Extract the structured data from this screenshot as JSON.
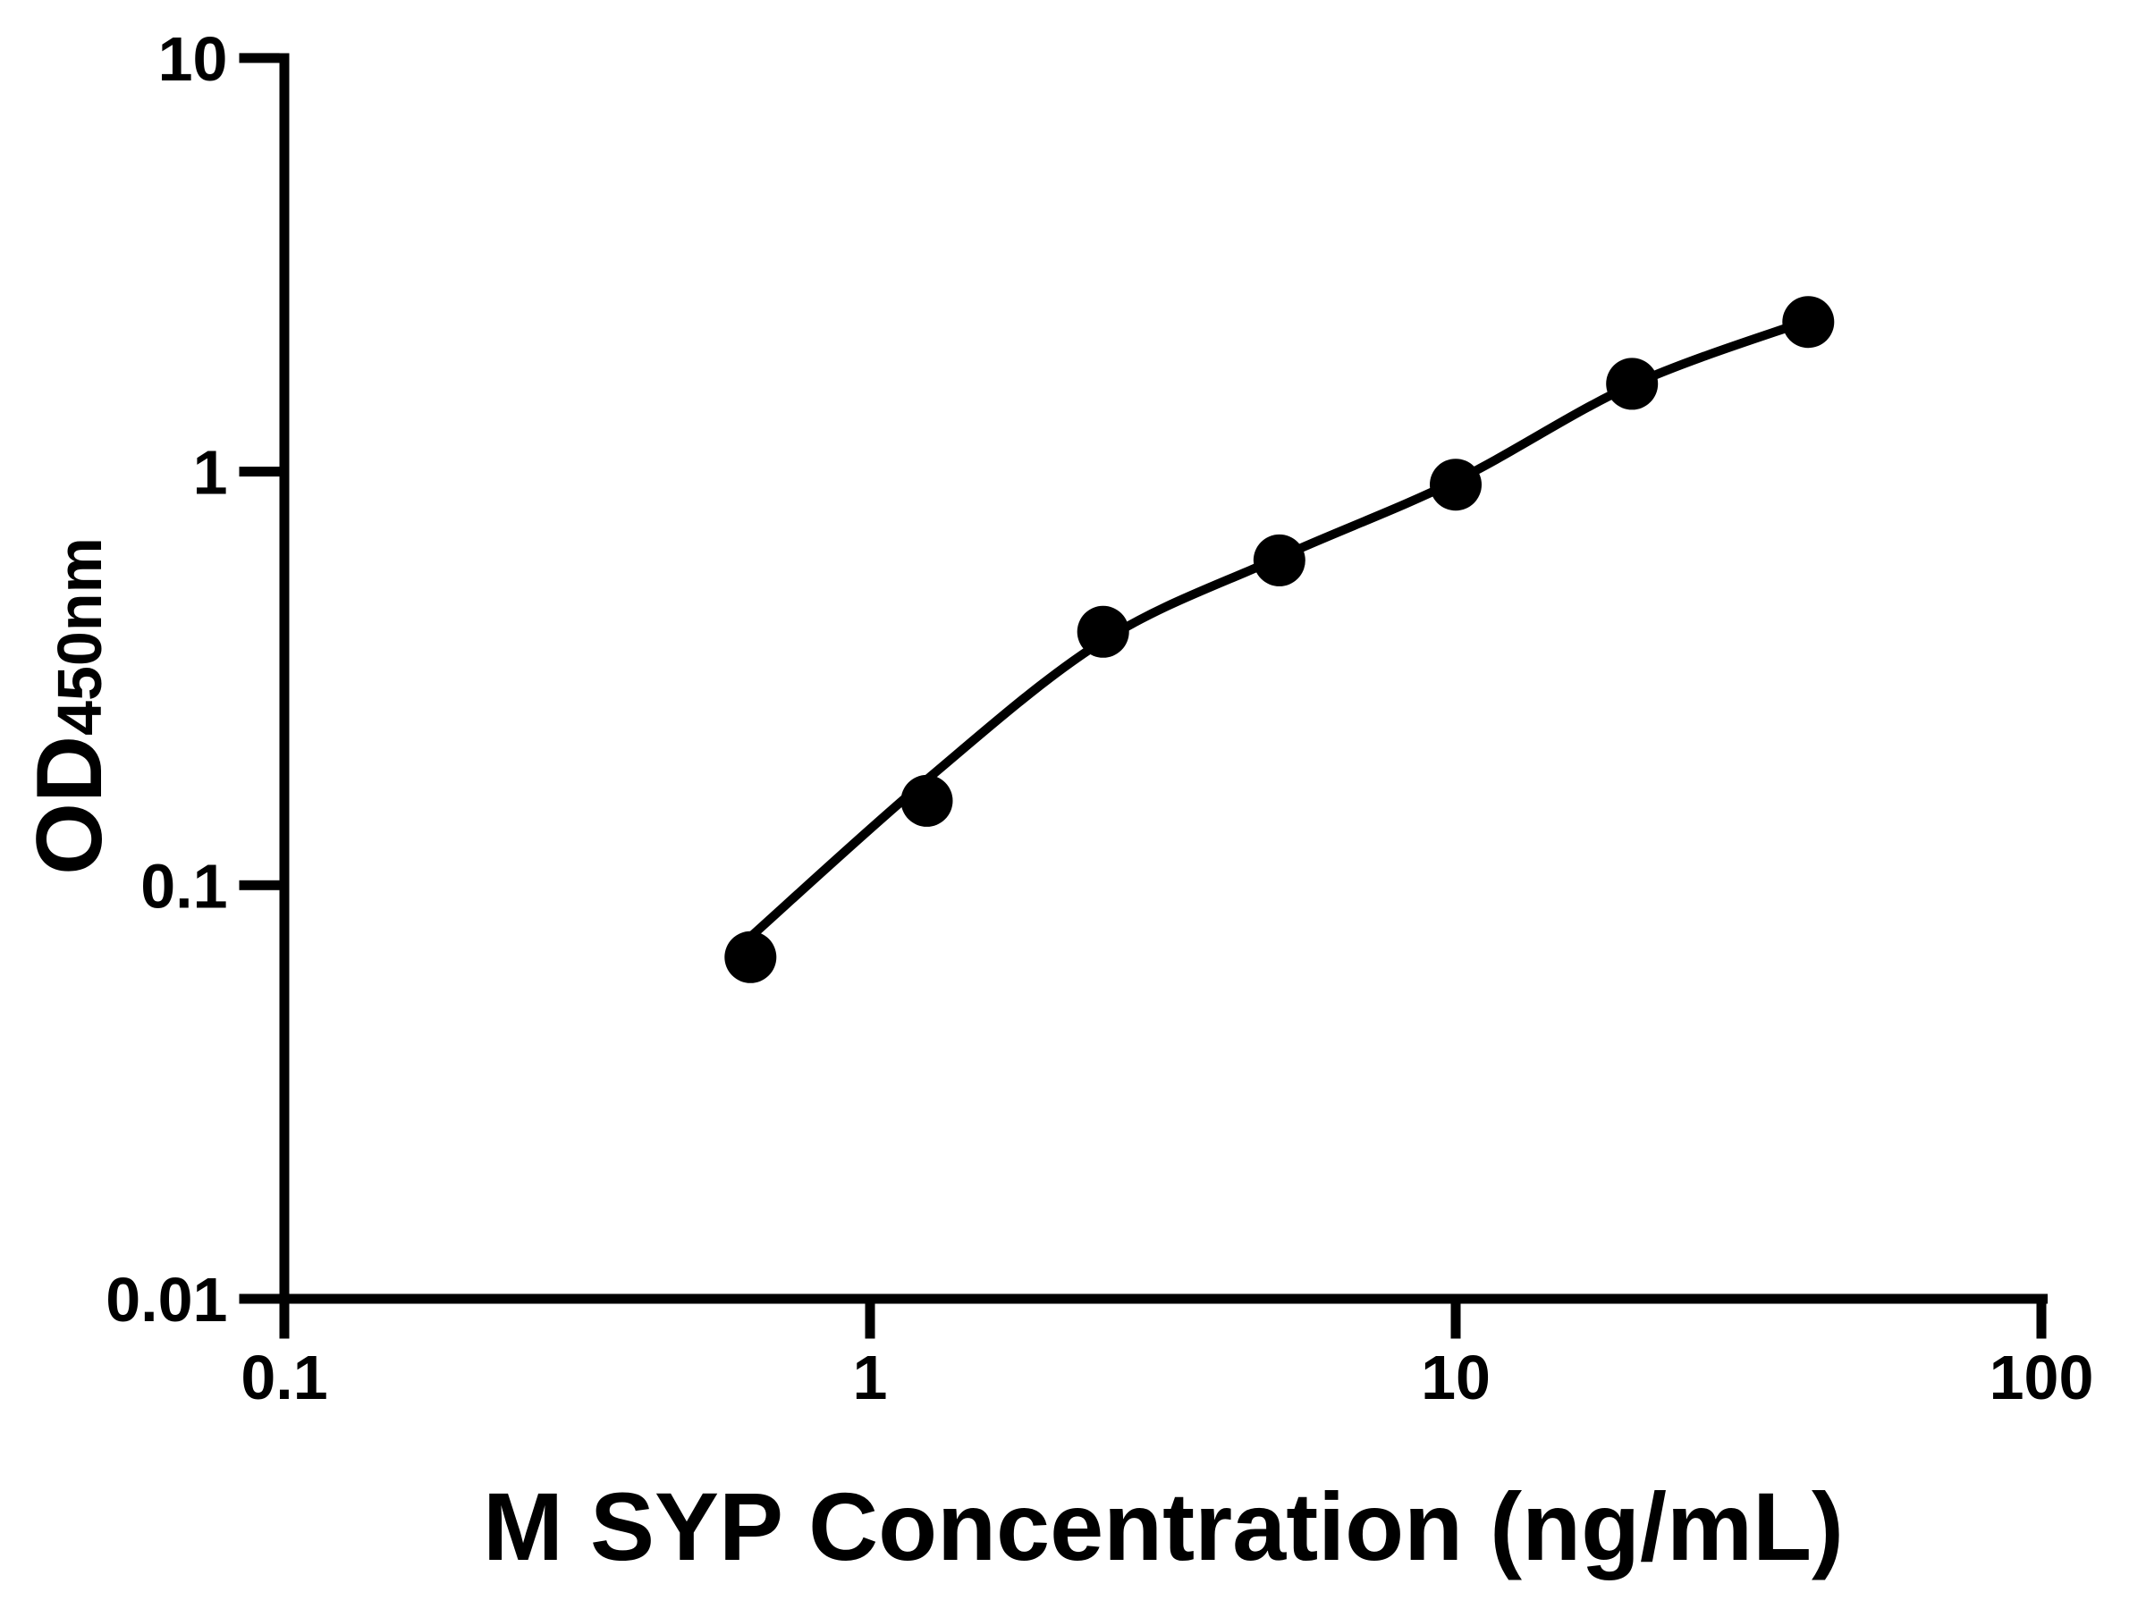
{
  "chart_data": {
    "type": "scatter",
    "title": "",
    "background_color": "#ffffff",
    "foreground_color": "#000000",
    "grid": false,
    "legend": false,
    "x_axis": {
      "label": "M SYP Concentration (ng/mL)",
      "scale": "log10",
      "range": [
        0.1,
        100
      ],
      "tick_values": [
        0.1,
        1,
        10,
        100
      ],
      "tick_labels": [
        "0.1",
        "1",
        "10",
        "100"
      ]
    },
    "y_axis": {
      "label": "OD450nm",
      "label_main": "OD",
      "label_subscript": "450nm",
      "scale": "log10",
      "range": [
        0.01,
        10
      ],
      "tick_values": [
        10,
        1,
        0.1,
        0.01
      ],
      "tick_labels": [
        "10",
        "1",
        "0.1",
        "0.01"
      ]
    },
    "series": [
      {
        "name": "M SYP standard points",
        "marker": "filled-circle",
        "color": "#000000",
        "points": [
          {
            "x": 0.625,
            "y": 0.067
          },
          {
            "x": 1.25,
            "y": 0.16
          },
          {
            "x": 2.5,
            "y": 0.41
          },
          {
            "x": 5,
            "y": 0.61
          },
          {
            "x": 10,
            "y": 0.93
          },
          {
            "x": 20,
            "y": 1.63
          },
          {
            "x": 40,
            "y": 2.3
          }
        ]
      }
    ],
    "fit_curve": {
      "name": "standard-curve-fit",
      "color": "#000000",
      "anchors": [
        {
          "x": 0.625,
          "y": 0.075
        },
        {
          "x": 1.25,
          "y": 0.18
        },
        {
          "x": 2.5,
          "y": 0.39
        },
        {
          "x": 5,
          "y": 0.62
        },
        {
          "x": 10,
          "y": 0.95
        },
        {
          "x": 20,
          "y": 1.62
        },
        {
          "x": 40,
          "y": 2.32
        }
      ]
    }
  }
}
